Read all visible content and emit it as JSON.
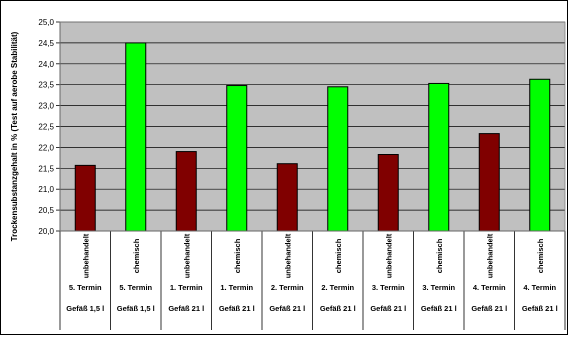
{
  "chart_data": {
    "type": "bar",
    "title": "",
    "xlabel": "",
    "ylabel": "Trockensubstanzgehalt in % (Test auf aerobe Stabilität)",
    "ylim": [
      20.0,
      25.0
    ],
    "ytick_step": 0.5,
    "ytick_labels": [
      "20,0",
      "20,5",
      "21,0",
      "21,5",
      "22,0",
      "22,5",
      "23,0",
      "23,5",
      "24,0",
      "24,5",
      "25,0"
    ],
    "grid": true,
    "legend": "none",
    "categories": [
      {
        "treatment": "unbehandelt",
        "termin": "5. Termin",
        "vessel": "Gefäß 1,5 l"
      },
      {
        "treatment": "chemisch",
        "termin": "5. Termin",
        "vessel": "Gefäß 1,5 l"
      },
      {
        "treatment": "unbehandelt",
        "termin": "1. Termin",
        "vessel": "Gefäß 21 l"
      },
      {
        "treatment": "chemisch",
        "termin": "1. Termin",
        "vessel": "Gefäß 21 l"
      },
      {
        "treatment": "unbehandelt",
        "termin": "2. Termin",
        "vessel": "Gefäß 21 l"
      },
      {
        "treatment": "chemisch",
        "termin": "2. Termin",
        "vessel": "Gefäß 21 l"
      },
      {
        "treatment": "unbehandelt",
        "termin": "3. Termin",
        "vessel": "Gefäß 21 l"
      },
      {
        "treatment": "chemisch",
        "termin": "3. Termin",
        "vessel": "Gefäß 21 l"
      },
      {
        "treatment": "unbehandelt",
        "termin": "4. Termin",
        "vessel": "Gefäß 21 l"
      },
      {
        "treatment": "chemisch",
        "termin": "4. Termin",
        "vessel": "Gefäß 21 l"
      }
    ],
    "values": [
      21.57,
      24.5,
      21.9,
      23.48,
      21.61,
      23.45,
      21.83,
      23.53,
      22.33,
      23.63
    ],
    "colors": {
      "unbehandelt": "#800000",
      "chemisch": "#00ff00",
      "plot_background": "#c0c0c0",
      "gridline": "#000000"
    }
  }
}
